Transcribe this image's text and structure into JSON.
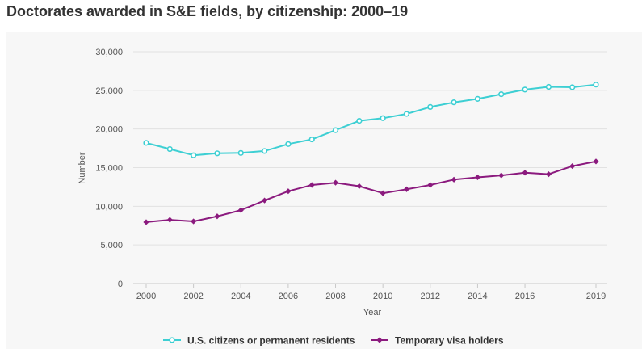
{
  "title": "Doctorates awarded in S&E fields, by citizenship: 2000–19",
  "chart_data": {
    "type": "line",
    "title": "Doctorates awarded in S&E fields, by citizenship: 2000–19",
    "xlabel": "Year",
    "ylabel": "Number",
    "ylim": [
      0,
      30000
    ],
    "xlim": [
      2000,
      2019
    ],
    "yticks": [
      0,
      5000,
      10000,
      15000,
      20000,
      25000,
      30000
    ],
    "ytick_labels": [
      "0",
      "5,000",
      "10,000",
      "15,000",
      "20,000",
      "25,000",
      "30,000"
    ],
    "xticks": [
      2000,
      2002,
      2004,
      2006,
      2008,
      2010,
      2012,
      2014,
      2016,
      2019
    ],
    "xtick_labels": [
      "2000",
      "2002",
      "2004",
      "2006",
      "2008",
      "2010",
      "2012",
      "2014",
      "2016",
      "2019"
    ],
    "grid": true,
    "legend_position": "bottom",
    "x": [
      2000,
      2001,
      2002,
      2003,
      2004,
      2005,
      2006,
      2007,
      2008,
      2009,
      2010,
      2011,
      2012,
      2013,
      2014,
      2015,
      2016,
      2017,
      2018,
      2019
    ],
    "series": [
      {
        "name": "U.S. citizens or permanent residents",
        "color": "#3dcfd3",
        "marker": "circle",
        "values": [
          18200,
          17400,
          16600,
          16850,
          16900,
          17150,
          18050,
          18650,
          19850,
          21050,
          21400,
          21950,
          22850,
          23450,
          23900,
          24500,
          25100,
          25450,
          25400,
          25750
        ]
      },
      {
        "name": "Temporary visa holders",
        "color": "#8b1a7e",
        "marker": "diamond",
        "values": [
          7950,
          8250,
          8050,
          8700,
          9500,
          10750,
          11950,
          12750,
          13050,
          12600,
          11700,
          12200,
          12750,
          13450,
          13750,
          14000,
          14350,
          14150,
          15200,
          15800
        ]
      }
    ]
  }
}
